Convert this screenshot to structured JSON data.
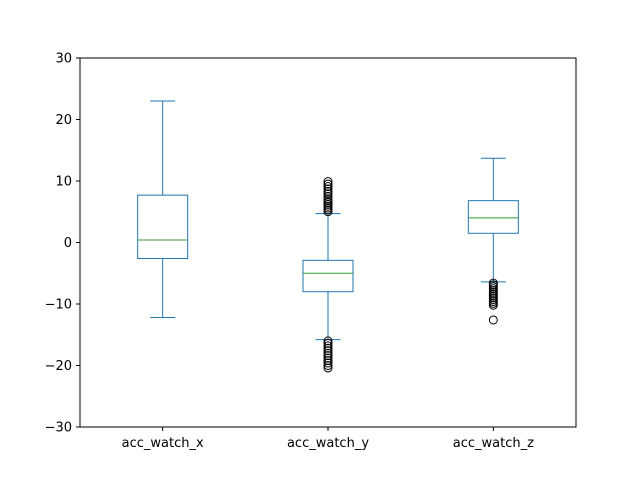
{
  "chart_data": {
    "type": "box",
    "title": "",
    "xlabel": "",
    "ylabel": "",
    "ylim": [
      -30,
      30
    ],
    "yticks": [
      -30,
      -20,
      -10,
      0,
      10,
      20,
      30
    ],
    "ytick_labels": [
      "−30",
      "−20",
      "−10",
      "0",
      "10",
      "20",
      "30"
    ],
    "grid": false,
    "colors": {
      "box": "#1f77b4",
      "median": "#2ca02c",
      "flier": "#000000",
      "axes": "#000000"
    },
    "categories": [
      "acc_watch_x",
      "acc_watch_y",
      "acc_watch_z"
    ],
    "boxes": [
      {
        "label": "acc_watch_x",
        "whisker_low": -12.2,
        "q1": -2.6,
        "median": 0.4,
        "q3": 7.7,
        "whisker_high": 23.0,
        "fliers": []
      },
      {
        "label": "acc_watch_y",
        "whisker_low": -15.8,
        "q1": -8.0,
        "median": -5.0,
        "q3": -2.9,
        "whisker_high": 4.7,
        "fliers": [
          5.0,
          5.3,
          5.6,
          5.9,
          6.2,
          6.5,
          6.8,
          7.1,
          7.5,
          7.9,
          8.3,
          8.7,
          9.1,
          9.5,
          9.9,
          -16.0,
          -16.4,
          -16.8,
          -17.2,
          -17.6,
          -18.0,
          -18.4,
          -18.8,
          -19.2,
          -19.6,
          -20.0,
          -20.4
        ]
      },
      {
        "label": "acc_watch_z",
        "whisker_low": -6.4,
        "q1": 1.5,
        "median": 4.0,
        "q3": 6.8,
        "whisker_high": 13.7,
        "fliers": [
          -6.6,
          -6.9,
          -7.2,
          -7.5,
          -7.8,
          -8.1,
          -8.4,
          -8.7,
          -9.0,
          -9.3,
          -9.6,
          -9.9,
          -10.2,
          -12.6
        ]
      }
    ]
  }
}
